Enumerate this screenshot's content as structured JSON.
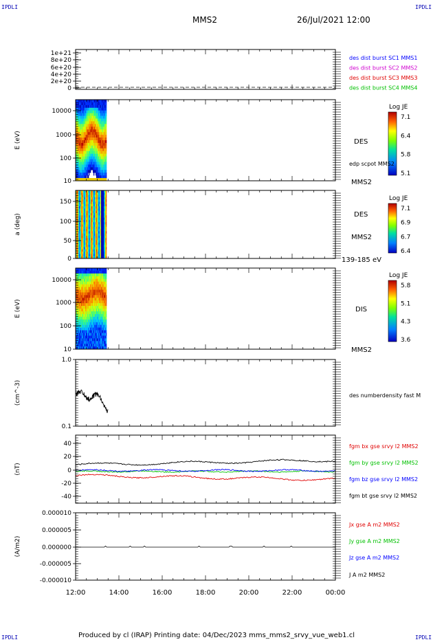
{
  "corners": {
    "tl": "IPDLI",
    "tr": "IPDLI",
    "bl": "IPDLI",
    "br": "IPDLI"
  },
  "header": {
    "title": "MMS2",
    "date": "26/Jul/2021 12:00"
  },
  "footer": {
    "text": "Produced by cl (IRAP)   Printing date: 04/Dec/2023   mms_mms2_srvy_vue_web1.cl"
  },
  "colors": {
    "c1": "#0000ff",
    "c2": "#d000d0",
    "c3": "#e00000",
    "c4": "#00c000",
    "black": "#000000"
  },
  "chart_data": [
    {
      "type": "line",
      "x_ticks": [
        "12:00",
        "14:00",
        "16:00",
        "18:00",
        "20:00",
        "22:00",
        "00:00"
      ],
      "ylim": [
        0,
        1.2e+21
      ],
      "y_ticks": [
        "1e+21",
        "8e+20",
        "6e+20",
        "4e+20",
        "2e+20",
        "0"
      ],
      "legend": [
        {
          "text": "des dist burst SC1 MMS1",
          "color": "#0000ff"
        },
        {
          "text": "des dist burst SC2 MMS2",
          "color": "#d000d0"
        },
        {
          "text": "des dist burst SC3 MMS3",
          "color": "#e00000"
        },
        {
          "text": "des dist burst SC4 MMS4",
          "color": "#00c000"
        }
      ]
    },
    {
      "type": "heatmap",
      "ylabel": "E (eV)",
      "y_ticks": [
        "10000",
        "1000",
        "100",
        "10"
      ],
      "species": "DES",
      "extra_label": "edp scpot MMS2",
      "spacecraft": "MMS2",
      "colorbar": {
        "title": "Log JE",
        "ticks": [
          "7.1",
          "6.4",
          "5.8",
          "5.1"
        ]
      }
    },
    {
      "type": "heatmap",
      "ylabel": "a (deg)",
      "y_ticks": [
        "150",
        "100",
        "50",
        "0"
      ],
      "species": "DES",
      "spacecraft": "MMS2",
      "energy_range": "139-185 eV",
      "colorbar": {
        "title": "Log JE",
        "ticks": [
          "7.1",
          "6.9",
          "6.7",
          "6.4"
        ]
      }
    },
    {
      "type": "heatmap",
      "ylabel": "E (eV)",
      "y_ticks": [
        "10000",
        "1000",
        "100",
        "10"
      ],
      "species": "DIS",
      "spacecraft": "MMS2",
      "colorbar": {
        "title": "Log JE",
        "ticks": [
          "5.8",
          "5.1",
          "4.3",
          "3.6"
        ]
      }
    },
    {
      "type": "line",
      "ylabel": "(cm^-3)",
      "y_ticks": [
        "1.0",
        "0.1"
      ],
      "series": [
        {
          "name": "des numberdensity fast M",
          "color": "#000000"
        }
      ]
    },
    {
      "type": "line",
      "ylabel": "(nT)",
      "ylim": [
        -50,
        50
      ],
      "y_ticks": [
        "40",
        "20",
        "0",
        "-20",
        "-40"
      ],
      "series": [
        {
          "name": "fgm bx gse srvy l2 MMS2",
          "color": "#e00000"
        },
        {
          "name": "fgm by gse srvy l2 MMS2",
          "color": "#00c000"
        },
        {
          "name": "fgm bz gse srvy l2 MMS2",
          "color": "#0000ff"
        },
        {
          "name": "fgm bt gse srvy l2 MMS2",
          "color": "#000000"
        }
      ]
    },
    {
      "type": "line",
      "ylabel": "(A/m2)",
      "ylim": [
        -1e-05,
        1e-05
      ],
      "y_ticks": [
        "0.000010",
        "0.000005",
        "0.000000",
        "-0.000005",
        "-0.000010"
      ],
      "series": [
        {
          "name": "Jx gse A m2 MMS2",
          "color": "#e00000"
        },
        {
          "name": "Jy gse A m2 MMS2",
          "color": "#00c000"
        },
        {
          "name": "Jz gse A m2 MMS2",
          "color": "#0000ff"
        },
        {
          "name": "J A m2 MMS2",
          "color": "#000000"
        }
      ]
    }
  ]
}
